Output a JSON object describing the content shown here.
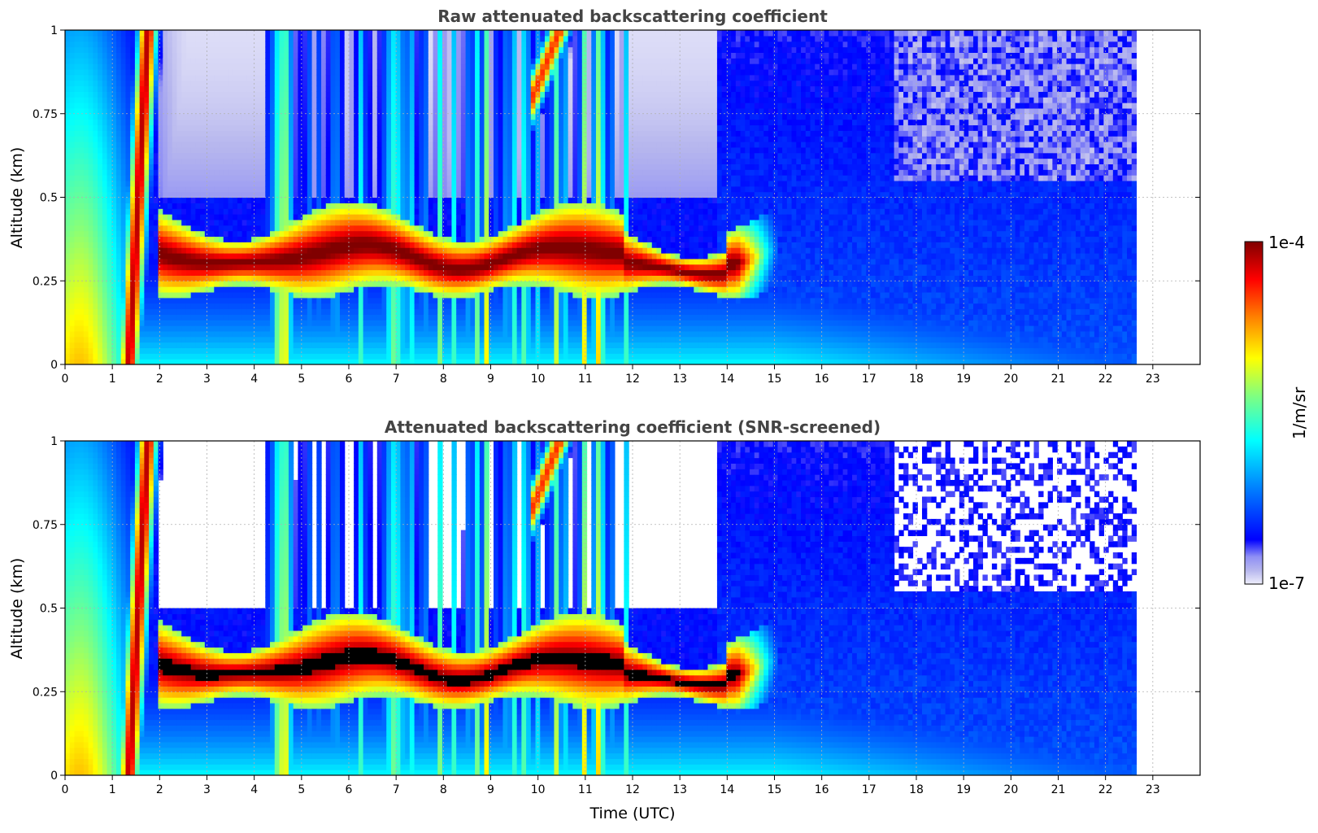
{
  "chart_data": [
    {
      "type": "heatmap",
      "title": "Raw attenuated backscattering coefficient",
      "xlabel": "",
      "ylabel": "Altitude (km)",
      "xlim": [
        0,
        24
      ],
      "ylim": [
        0,
        1
      ],
      "x_ticks": [
        "0",
        "1",
        "2",
        "3",
        "4",
        "5",
        "6",
        "7",
        "8",
        "9",
        "10",
        "11",
        "12",
        "13",
        "14",
        "15",
        "16",
        "17",
        "18",
        "19",
        "20",
        "21",
        "22",
        "23"
      ],
      "y_ticks": [
        "0",
        "0.25",
        "0.5",
        "0.75",
        "1"
      ],
      "grid": true,
      "data_end_time": 22.65,
      "scale": "log",
      "value_range": [
        1e-07,
        0.0001
      ],
      "features": {
        "cloud_layer_base_km": 0.22,
        "cloud_layer_top_km": 0.45,
        "cloud_layer_time_range": [
          2.0,
          15.3
        ],
        "clear_sky_time_range": [
          15.3,
          22.65
        ]
      }
    },
    {
      "type": "heatmap",
      "title": "Attenuated backscattering coefficient (SNR-screened)",
      "xlabel": "Time (UTC)",
      "ylabel": "Altitude (km)",
      "xlim": [
        0,
        24
      ],
      "ylim": [
        0,
        1
      ],
      "x_ticks": [
        "0",
        "1",
        "2",
        "3",
        "4",
        "5",
        "6",
        "7",
        "8",
        "9",
        "10",
        "11",
        "12",
        "13",
        "14",
        "15",
        "16",
        "17",
        "18",
        "19",
        "20",
        "21",
        "22",
        "23"
      ],
      "y_ticks": [
        "0",
        "0.25",
        "0.5",
        "0.75",
        "1"
      ],
      "grid": true,
      "data_end_time": 22.65,
      "scale": "log",
      "value_range": [
        1e-07,
        0.0001
      ],
      "features": {
        "saturated_color": "#000000",
        "cloud_layer_base_km": 0.2,
        "cloud_layer_top_km": 0.42,
        "cloud_layer_time_range": [
          2.0,
          15.3
        ]
      }
    }
  ],
  "colorbar": {
    "label": "1/m/sr",
    "max_label": "1e-4",
    "min_label": "1e-7",
    "colormap": "jet-like with light lavender low end",
    "stops": [
      "#eeeefb",
      "#b7b7ee",
      "#8f8ff5",
      "#0000ff",
      "#0080ff",
      "#00ffff",
      "#80ff80",
      "#ffff00",
      "#ff8000",
      "#ff0000",
      "#800000"
    ]
  }
}
